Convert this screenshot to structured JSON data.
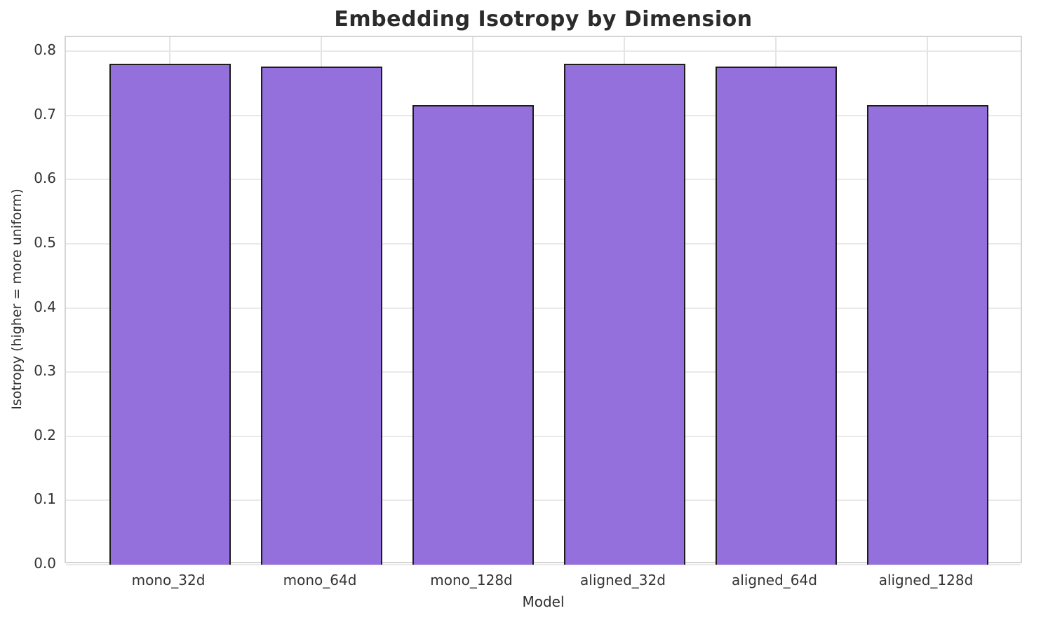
{
  "chart_data": {
    "type": "bar",
    "title": "Embedding Isotropy by Dimension",
    "xlabel": "Model",
    "ylabel": "Isotropy (higher = more uniform)",
    "categories": [
      "mono_32d",
      "mono_64d",
      "mono_128d",
      "aligned_32d",
      "aligned_64d",
      "aligned_128d"
    ],
    "values": [
      0.78,
      0.776,
      0.716,
      0.78,
      0.776,
      0.716
    ],
    "ylim": [
      0.0,
      0.822
    ],
    "yticks": [
      0.0,
      0.1,
      0.2,
      0.3,
      0.4,
      0.5,
      0.6,
      0.7,
      0.8
    ],
    "grid": "both",
    "legend_position": "none",
    "colors": {
      "bar_fill": "#9370db",
      "bar_edge": "#1c1c1c",
      "grid": "#e9e9e9",
      "spine": "#d4d4d4",
      "background": "#ffffff"
    }
  }
}
